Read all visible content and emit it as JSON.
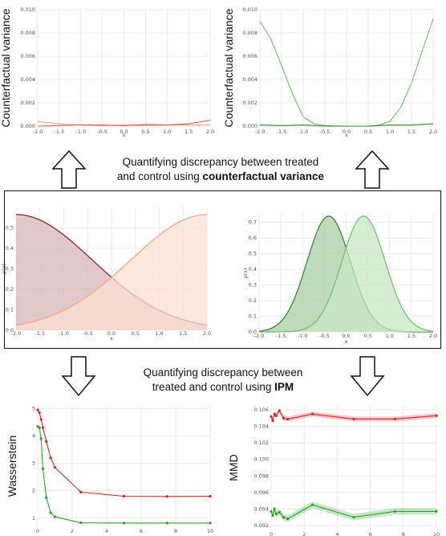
{
  "captions": {
    "top_line1": "Quantifying discrepancy between treated",
    "top_line2_prefix": "and control using ",
    "top_line2_bold": "counterfactual variance",
    "bottom_line1": "Quantifying discrepancy between",
    "bottom_line2_prefix": "treated and control using ",
    "bottom_line2_bold": "IPM"
  },
  "icons": {
    "top_left": "arrow-up-icon",
    "top_right": "arrow-up-icon",
    "bottom_left": "arrow-down-icon",
    "bottom_right": "arrow-down-icon"
  },
  "colors": {
    "red": "#d6604d",
    "red_dark": "#d62728",
    "salmon": "#f4a582",
    "dark_red": "#8b1a1a",
    "green": "#2e8b2e",
    "light_green": "#6abf6a"
  },
  "chart_data": [
    {
      "id": "cf-variance-left",
      "type": "line",
      "ylabel": "Counterfactual variance",
      "xlabel": "x",
      "xlim": [
        -2,
        2
      ],
      "ylim": [
        0,
        0.01
      ],
      "x_ticks": [
        "-2.0",
        "-1.5",
        "-1.0",
        "-0.5",
        "0.0",
        "0.5",
        "1.0",
        "1.5",
        "2.0"
      ],
      "y_ticks": [
        "0.000",
        "0.002",
        "0.004",
        "0.006",
        "0.008",
        "0.010"
      ],
      "series": [
        {
          "color": "#f4a582",
          "x": [
            -2.0,
            -1.5,
            -1.0,
            -0.5,
            0.0,
            0.5,
            1.0,
            1.5,
            2.0
          ],
          "values": [
            0.0004,
            0.0002,
            0.0001,
            5e-05,
            0.0001,
            5e-05,
            0.0001,
            0.0001,
            0.0001
          ]
        },
        {
          "color": "#d6604d",
          "x": [
            -2.0,
            -1.5,
            -1.0,
            -0.5,
            0.0,
            0.5,
            1.0,
            1.5,
            2.0
          ],
          "values": [
            0.0,
            5e-05,
            0.00012,
            0.0001,
            5e-05,
            0.00015,
            0.0001,
            0.0002,
            0.0005
          ]
        }
      ]
    },
    {
      "id": "cf-variance-right",
      "type": "line",
      "ylabel": "Counterfactual variance",
      "xlabel": "x",
      "xlim": [
        -2,
        2
      ],
      "ylim": [
        0,
        0.01
      ],
      "x_ticks": [
        "-2.0",
        "-1.5",
        "-1.0",
        "-0.5",
        "0.0",
        "0.5",
        "1.0",
        "1.5",
        "2.0"
      ],
      "y_ticks": [
        "0.000",
        "0.002",
        "0.004",
        "0.006",
        "0.008",
        "0.010"
      ],
      "series": [
        {
          "color": "#6abf6a",
          "x": [
            -2.0,
            -1.75,
            -1.5,
            -1.25,
            -1.0,
            -0.75,
            -0.5,
            0.0,
            0.5,
            0.75,
            1.0,
            1.25,
            1.5,
            1.75,
            2.0
          ],
          "values": [
            0.009,
            0.0075,
            0.0052,
            0.0028,
            0.0008,
            0.0002,
            5e-05,
            0.0,
            0.0,
            0.0001,
            0.0004,
            0.0016,
            0.0037,
            0.0065,
            0.0092
          ]
        },
        {
          "color": "#2e8b2e",
          "x": [
            -2.0,
            -1.5,
            -1.0,
            -0.5,
            0.0,
            0.5,
            1.0,
            1.5,
            2.0
          ],
          "values": [
            0.0001,
            5e-05,
            0.0001,
            0.0,
            0.0,
            0.0,
            0.0001,
            0.0001,
            0.0002
          ]
        }
      ]
    },
    {
      "id": "density-left",
      "type": "area",
      "ylabel": "p(x)",
      "xlabel": "x",
      "xlim": [
        -2,
        2
      ],
      "ylim": [
        0,
        0.6
      ],
      "x_ticks": [
        "-2.0",
        "-1.5",
        "-1.0",
        "-0.5",
        "0.0",
        "0.5",
        "1.0",
        "1.5",
        "2.0"
      ],
      "y_ticks": [
        "0.0",
        "0.1",
        "0.2",
        "0.3",
        "0.4",
        "0.5"
      ],
      "series": [
        {
          "color": "#8b1a1a",
          "fill": "#d7b5b8",
          "mean": -2.0,
          "sd": 1.6,
          "peak": 0.565
        },
        {
          "color": "#f4a582",
          "fill": "#fbe0d4",
          "mean": 2.0,
          "sd": 1.6,
          "peak": 0.565
        }
      ]
    },
    {
      "id": "density-right",
      "type": "area",
      "ylabel": "p(x)",
      "xlabel": "x",
      "xlim": [
        -2,
        2
      ],
      "ylim": [
        0,
        0.75
      ],
      "x_ticks": [
        "-2.0",
        "-1.5",
        "-1.0",
        "-0.5",
        "0.0",
        "0.5",
        "1.0",
        "1.5",
        "2.0"
      ],
      "y_ticks": [
        "0.0",
        "0.1",
        "0.2",
        "0.3",
        "0.4",
        "0.5",
        "0.6",
        "0.7"
      ],
      "series": [
        {
          "color": "#2e7d32",
          "fill": "#a9cfa4",
          "mean": -0.4,
          "sd": 0.5,
          "peak": 0.74
        },
        {
          "color": "#6abf6a",
          "fill": "#c8e6c4",
          "mean": 0.4,
          "sd": 0.5,
          "peak": 0.74
        }
      ]
    },
    {
      "id": "wasserstein",
      "type": "line",
      "ylabel": "Wasserstein",
      "xlim": [
        0,
        10
      ],
      "ylim": [
        0.7,
        5.1
      ],
      "x_ticks": [
        "0",
        "2",
        "4",
        "6",
        "8",
        "10"
      ],
      "y_ticks": [
        "1",
        "2",
        "3",
        "4",
        "5"
      ],
      "series": [
        {
          "color": "#d62728",
          "x": [
            0.0,
            0.1,
            0.2,
            0.3,
            0.5,
            0.75,
            1.0,
            2.5,
            5.0,
            7.5,
            10.0
          ],
          "values": [
            4.95,
            4.85,
            4.6,
            4.3,
            3.8,
            3.2,
            2.85,
            1.95,
            1.8,
            1.79,
            1.8
          ]
        },
        {
          "color": "#2ca02c",
          "x": [
            0.0,
            0.1,
            0.2,
            0.3,
            0.5,
            0.75,
            1.0,
            2.5,
            5.0,
            7.5,
            10.0
          ],
          "values": [
            4.35,
            4.3,
            3.9,
            2.8,
            1.75,
            1.2,
            1.05,
            0.83,
            0.82,
            0.82,
            0.82
          ]
        }
      ]
    },
    {
      "id": "mmd",
      "type": "line",
      "ylabel": "MMD",
      "xlim": [
        0,
        10
      ],
      "ylim": [
        0.0915,
        0.1065
      ],
      "x_ticks": [
        "0",
        "2",
        "4",
        "6",
        "8",
        "10"
      ],
      "y_ticks": [
        "0.092",
        "0.094",
        "0.096",
        "0.098",
        "0.100",
        "0.102",
        "0.104",
        "0.106"
      ],
      "series": [
        {
          "color": "#d62728",
          "band": 0.0003,
          "x": [
            0.0,
            0.1,
            0.2,
            0.3,
            0.5,
            0.75,
            1.0,
            2.5,
            5.0,
            7.5,
            10.0
          ],
          "values": [
            0.1052,
            0.1047,
            0.1055,
            0.1053,
            0.1059,
            0.105,
            0.1049,
            0.1055,
            0.1049,
            0.1049,
            0.1053
          ]
        },
        {
          "color": "#2ca02c",
          "band": 0.0004,
          "x": [
            0.0,
            0.1,
            0.2,
            0.3,
            0.5,
            0.75,
            1.0,
            2.5,
            5.0,
            7.5,
            10.0
          ],
          "values": [
            0.0937,
            0.0932,
            0.094,
            0.0934,
            0.0936,
            0.093,
            0.0928,
            0.0945,
            0.093,
            0.0937,
            0.0937
          ]
        }
      ]
    }
  ]
}
